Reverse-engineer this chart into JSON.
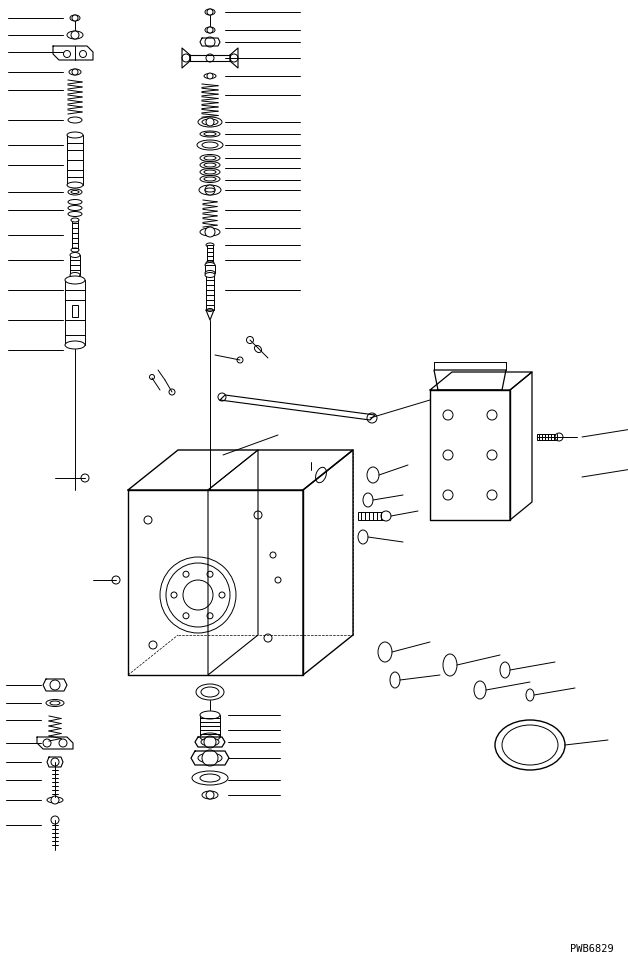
{
  "bg_color": "#ffffff",
  "line_color": "#000000",
  "watermark": "PWB6829",
  "fig_width": 6.28,
  "fig_height": 9.66,
  "dpi": 100
}
